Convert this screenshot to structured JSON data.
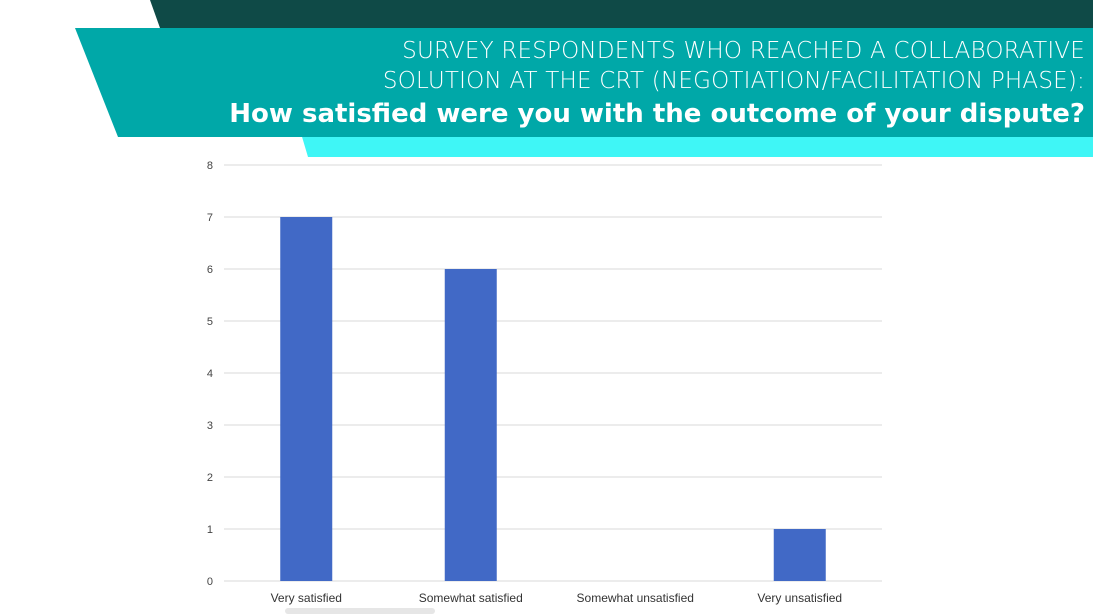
{
  "header": {
    "title_line1": "SURVEY RESPONDENTS WHO REACHED A COLLABORATIVE",
    "title_line2": "SOLUTION AT THE CRT (NEGOTIATION/FACILITATION PHASE):",
    "subtitle": "How satisfied were you with the outcome of your dispute?"
  },
  "colors": {
    "dark_teal": "#0f4a47",
    "teal": "#00a8a8",
    "cyan": "#3ff6f6",
    "bar": "#4169c6",
    "grid": "#d9d9d9"
  },
  "chart_data": {
    "type": "bar",
    "categories": [
      "Very satisfied",
      "Somewhat satisfied",
      "Somewhat unsatisfied",
      "Very unsatisfied"
    ],
    "values": [
      7,
      6,
      0,
      1
    ],
    "title": "How satisfied were you with the outcome of your dispute?",
    "xlabel": "",
    "ylabel": "",
    "ylim": [
      0,
      8
    ],
    "yticks": [
      0,
      1,
      2,
      3,
      4,
      5,
      6,
      7,
      8
    ],
    "grid": true,
    "legend": "none"
  }
}
